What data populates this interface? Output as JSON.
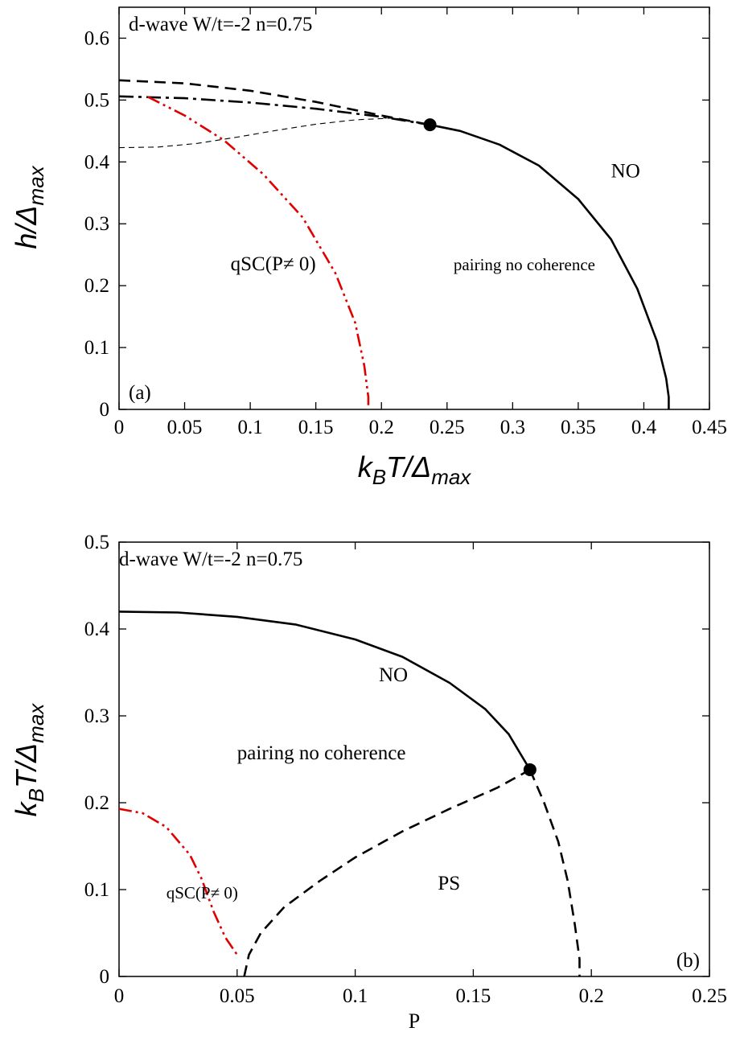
{
  "chart_data": [
    {
      "type": "line",
      "panel_label": "(a)",
      "annotation": "d-wave W/t=-2 n=0.75",
      "xlabel": "k_B T/Δ_max",
      "ylabel": "h/Δ_max",
      "xlim": [
        0,
        0.45
      ],
      "ylim": [
        0,
        0.65
      ],
      "xticks": [
        "0",
        "0.05",
        "0.1",
        "0.15",
        "0.2",
        "0.25",
        "0.3",
        "0.35",
        "0.4",
        "0.45"
      ],
      "yticks": [
        "0",
        "0.1",
        "0.2",
        "0.3",
        "0.4",
        "0.5",
        "0.6"
      ],
      "region_labels": [
        {
          "text": "NO",
          "x": 0.375,
          "y": 0.375
        },
        {
          "text": "qSC(P≠ 0)",
          "x": 0.085,
          "y": 0.225
        },
        {
          "text": "pairing no coherence",
          "x": 0.255,
          "y": 0.225
        }
      ],
      "series": [
        {
          "style": "solid",
          "color": "#000000",
          "x": [
            0.237,
            0.26,
            0.29,
            0.32,
            0.35,
            0.375,
            0.395,
            0.41,
            0.417,
            0.419,
            0.419
          ],
          "y": [
            0.46,
            0.45,
            0.428,
            0.394,
            0.34,
            0.275,
            0.195,
            0.11,
            0.05,
            0.02,
            0
          ]
        },
        {
          "style": "dashed",
          "color": "#000000",
          "x": [
            0,
            0.05,
            0.1,
            0.15,
            0.2,
            0.237
          ],
          "y": [
            0.532,
            0.527,
            0.515,
            0.497,
            0.475,
            0.46
          ]
        },
        {
          "style": "dash-dot",
          "color": "#000000",
          "x": [
            0,
            0.05,
            0.1,
            0.15,
            0.2,
            0.237
          ],
          "y": [
            0.506,
            0.503,
            0.496,
            0.486,
            0.473,
            0.46
          ]
        },
        {
          "style": "thin-dashed",
          "color": "#000000",
          "x": [
            0,
            0.03,
            0.06,
            0.09,
            0.12,
            0.15,
            0.18,
            0.21,
            0.237
          ],
          "y": [
            0.423,
            0.424,
            0.43,
            0.44,
            0.451,
            0.461,
            0.468,
            0.471,
            0.46
          ]
        },
        {
          "style": "dash-dot-dot",
          "color": "#e00000",
          "x": [
            0.022,
            0.05,
            0.08,
            0.11,
            0.14,
            0.165,
            0.18,
            0.187,
            0.19,
            0.19
          ],
          "y": [
            0.505,
            0.475,
            0.435,
            0.38,
            0.31,
            0.22,
            0.14,
            0.07,
            0.02,
            0
          ]
        }
      ],
      "point": {
        "x": 0.237,
        "y": 0.46
      }
    },
    {
      "type": "line",
      "panel_label": "(b)",
      "annotation": "d-wave W/t=-2 n=0.75",
      "xlabel": "P",
      "ylabel": "k_B T/Δ_max",
      "xlim": [
        0,
        0.25
      ],
      "ylim": [
        0,
        0.5
      ],
      "xticks": [
        "0",
        "0.05",
        "0.1",
        "0.15",
        "0.2",
        "0.25"
      ],
      "yticks": [
        "0",
        "0.1",
        "0.2",
        "0.3",
        "0.4",
        "0.5"
      ],
      "region_labels": [
        {
          "text": "NO",
          "x": 0.11,
          "y": 0.34
        },
        {
          "text": "pairing no coherence",
          "x": 0.05,
          "y": 0.25
        },
        {
          "text": "PS",
          "x": 0.135,
          "y": 0.1
        },
        {
          "text": "qSC(P≠ 0)",
          "x": 0.02,
          "y": 0.09
        }
      ],
      "series": [
        {
          "style": "solid",
          "color": "#000000",
          "x": [
            0,
            0.025,
            0.05,
            0.075,
            0.1,
            0.12,
            0.14,
            0.155,
            0.165,
            0.174
          ],
          "y": [
            0.42,
            0.419,
            0.414,
            0.405,
            0.388,
            0.368,
            0.338,
            0.308,
            0.279,
            0.238
          ]
        },
        {
          "style": "dashed",
          "color": "#000000",
          "x": [
            0.174,
            0.18,
            0.186,
            0.19,
            0.193,
            0.195,
            0.195
          ],
          "y": [
            0.238,
            0.2,
            0.155,
            0.11,
            0.06,
            0.02,
            0
          ]
        },
        {
          "style": "dashed",
          "color": "#000000",
          "x": [
            0.053,
            0.055,
            0.06,
            0.07,
            0.085,
            0.1,
            0.12,
            0.14,
            0.16,
            0.174
          ],
          "y": [
            0,
            0.025,
            0.05,
            0.08,
            0.11,
            0.137,
            0.167,
            0.193,
            0.217,
            0.238
          ]
        },
        {
          "style": "dash-dot-dot",
          "color": "#e00000",
          "x": [
            0,
            0.01,
            0.02,
            0.03,
            0.035,
            0.04,
            0.045,
            0.05
          ],
          "y": [
            0.193,
            0.188,
            0.172,
            0.14,
            0.112,
            0.075,
            0.045,
            0.025
          ]
        }
      ],
      "point": {
        "x": 0.174,
        "y": 0.238
      }
    }
  ]
}
